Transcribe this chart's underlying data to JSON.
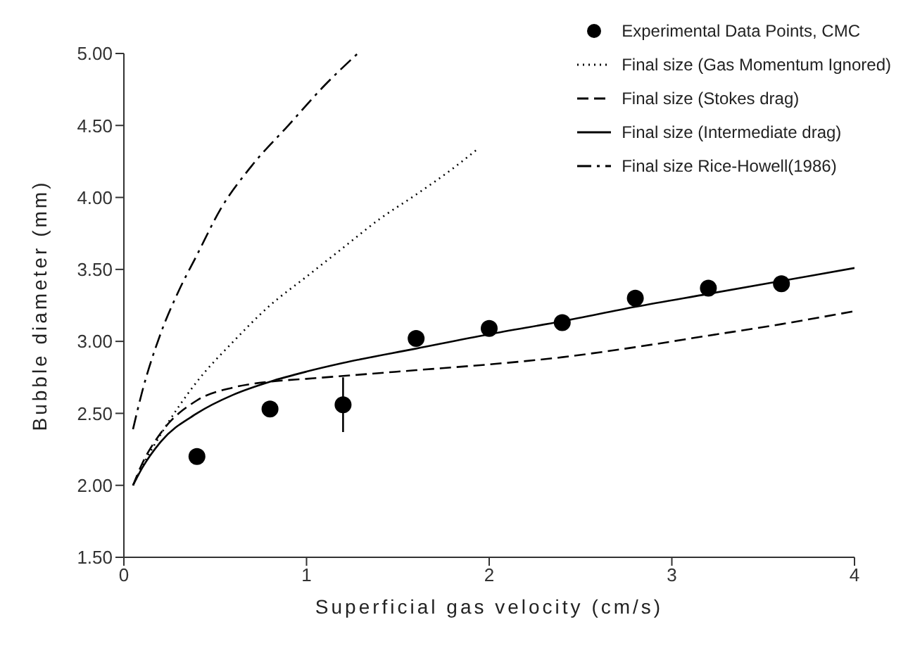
{
  "chart_data": {
    "type": "line",
    "xlabel": "Superficial gas velocity (cm/s)",
    "ylabel": "Bubble diameter (mm)",
    "xlim": [
      0,
      4
    ],
    "xticks": [
      0,
      1,
      2,
      3,
      4
    ],
    "ylim": [
      1.5,
      5
    ],
    "yticks": [
      {
        "value": 1.5,
        "label": "1.50"
      },
      {
        "value": 2,
        "label": "2.00"
      },
      {
        "value": 2.5,
        "label": "2.50"
      },
      {
        "value": 3,
        "label": "3.00"
      },
      {
        "value": 3.5,
        "label": "3.50"
      },
      {
        "value": 4,
        "label": "4.00"
      },
      {
        "value": 4.5,
        "label": "4.50"
      },
      {
        "value": 5,
        "label": "5.00"
      }
    ],
    "grid": false,
    "legend": "top right",
    "series": [
      {
        "name": "Experimental Data Points, CMC",
        "type": "scatter",
        "marker": "circle",
        "color": "#000000",
        "x": [
          0.4,
          0.8,
          1.2,
          1.6,
          2.0,
          2.4,
          2.8,
          3.2,
          3.6
        ],
        "values": [
          2.2,
          2.53,
          2.56,
          3.02,
          3.09,
          3.13,
          3.3,
          3.37,
          3.4
        ],
        "errors": [
          null,
          null,
          [
            2.37,
            2.75
          ],
          null,
          null,
          null,
          null,
          null,
          null
        ]
      },
      {
        "name": "Final size (Gas Momentum Ignored)",
        "line_style": "dotted",
        "color": "#000000",
        "x": [
          0.05,
          0.1,
          0.2,
          0.4,
          0.6,
          0.8,
          1.0,
          1.2,
          1.4,
          1.6,
          1.8,
          1.93
        ],
        "values": [
          2.0,
          2.13,
          2.35,
          2.72,
          3.0,
          3.25,
          3.45,
          3.65,
          3.85,
          4.02,
          4.2,
          4.33
        ]
      },
      {
        "name": "Final size (Stokes drag)",
        "line_style": "dashed",
        "color": "#000000",
        "x": [
          0.05,
          0.1,
          0.2,
          0.4,
          0.6,
          0.8,
          1.0,
          1.2,
          1.6,
          2.0,
          2.4,
          2.8,
          3.2,
          3.6,
          4.0
        ],
        "values": [
          2.0,
          2.15,
          2.36,
          2.59,
          2.68,
          2.72,
          2.74,
          2.76,
          2.8,
          2.84,
          2.89,
          2.96,
          3.04,
          3.12,
          3.21
        ]
      },
      {
        "name": "Final size (Intermediate drag)",
        "line_style": "solid",
        "color": "#000000",
        "x": [
          0.05,
          0.1,
          0.2,
          0.4,
          0.6,
          0.8,
          1.0,
          1.2,
          1.6,
          2.0,
          2.4,
          2.8,
          3.2,
          3.6,
          4.0
        ],
        "values": [
          2.0,
          2.12,
          2.3,
          2.5,
          2.63,
          2.72,
          2.79,
          2.85,
          2.95,
          3.05,
          3.14,
          3.24,
          3.33,
          3.42,
          3.51
        ]
      },
      {
        "name": "Final size Rice-Howell(1986)",
        "line_style": "dashdot",
        "color": "#000000",
        "x": [
          0.05,
          0.1,
          0.2,
          0.3,
          0.4,
          0.53,
          0.7,
          0.9,
          1.1,
          1.28
        ],
        "values": [
          2.39,
          2.65,
          3.05,
          3.35,
          3.6,
          3.92,
          4.22,
          4.5,
          4.78,
          5.0
        ]
      }
    ]
  }
}
